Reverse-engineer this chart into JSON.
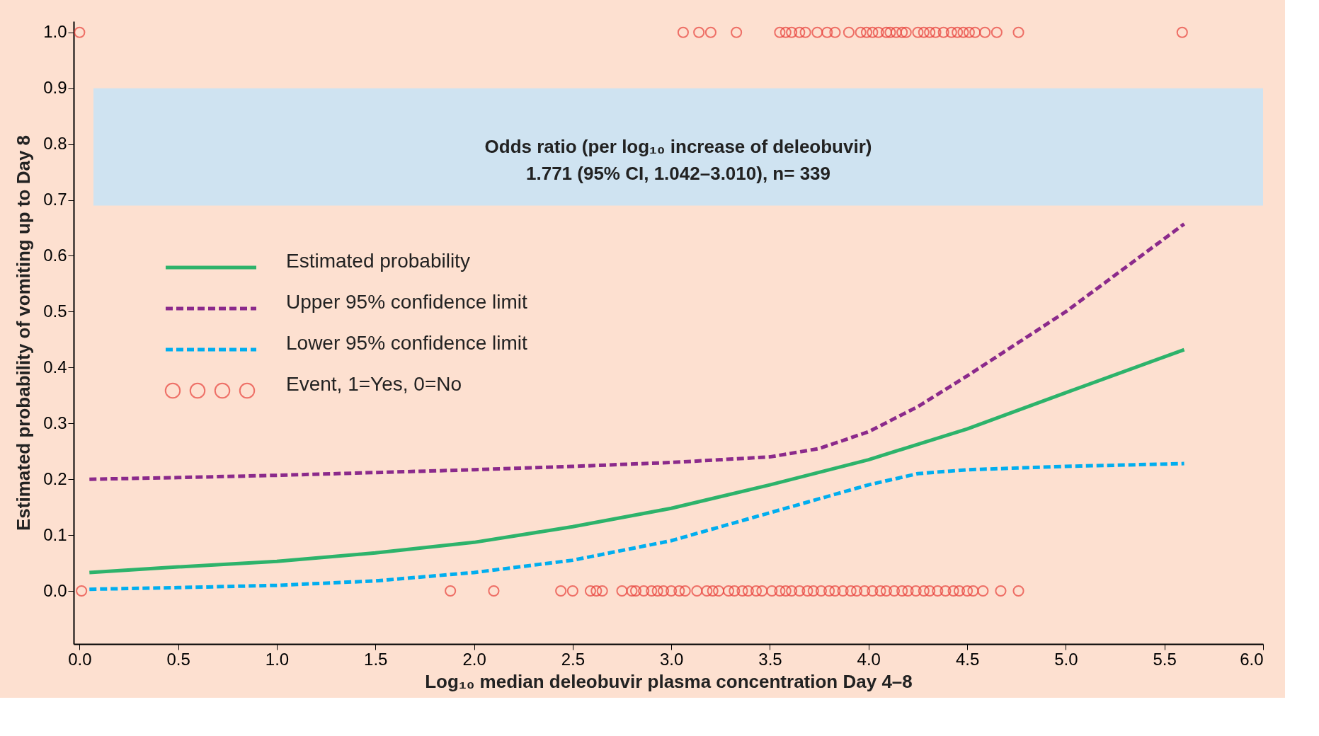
{
  "chart_data": {
    "type": "line",
    "xlabel": "Log₁₀ median deleobuvir plasma concentration Day 4–8",
    "ylabel": "Estimated probability of vomiting up to Day 8",
    "xlim": [
      -0.03,
      6.0
    ],
    "xticks": [
      {
        "value": 0,
        "label": "0.0"
      },
      0.5,
      {
        "value": 1,
        "label": "1.0"
      },
      1.5,
      {
        "value": 2,
        "label": "2.0"
      },
      2.5,
      {
        "value": 3,
        "label": "3.0"
      },
      3.5,
      {
        "value": 4,
        "label": "4.0"
      },
      4.5,
      {
        "value": 5,
        "label": "5.0"
      },
      5.5,
      {
        "value": 6,
        "label": "6.0"
      }
    ],
    "ylim": [
      -0.095,
      1.02
    ],
    "yticks": [
      {
        "value": 0,
        "label": "0.0"
      },
      0.1,
      0.2,
      0.3,
      0.4,
      0.5,
      0.6,
      0.7,
      0.8,
      0.9,
      {
        "value": 1,
        "label": "1.0"
      }
    ],
    "grid": false,
    "legend": "top left",
    "bands": [
      {
        "axis": "y",
        "from": 0.69,
        "to": 0.9,
        "color": "#cfe3f1",
        "label": "Odds ratio (per log₁₀ increase of deleobuvir)\n1.771 (95% CI, 1.042–3.010), n= 339"
      }
    ],
    "series": [
      {
        "name": "Estimated probability",
        "line_style": "solid",
        "color": "#2db36b",
        "x": [
          0.05,
          0.5,
          1.0,
          1.5,
          2.0,
          2.5,
          3.0,
          3.5,
          4.0,
          4.5,
          5.0,
          5.6
        ],
        "values": [
          0.033,
          0.043,
          0.053,
          0.068,
          0.087,
          0.115,
          0.148,
          0.19,
          0.235,
          0.29,
          0.355,
          0.432
        ]
      },
      {
        "name": "Upper 95% confidence limit",
        "line_style": "dashed",
        "color": "#8b2a8b",
        "x": [
          0.05,
          0.5,
          1.0,
          1.5,
          2.0,
          2.5,
          3.0,
          3.5,
          3.75,
          4.0,
          4.25,
          4.5,
          5.0,
          5.6
        ],
        "values": [
          0.2,
          0.203,
          0.207,
          0.212,
          0.217,
          0.223,
          0.23,
          0.24,
          0.255,
          0.285,
          0.33,
          0.385,
          0.5,
          0.657
        ]
      },
      {
        "name": "Lower 95% confidence limit",
        "line_style": "dashed",
        "color": "#00aeef",
        "x": [
          0.05,
          0.5,
          1.0,
          1.5,
          2.0,
          2.5,
          3.0,
          3.5,
          4.0,
          4.25,
          4.5,
          5.0,
          5.6
        ],
        "values": [
          0.003,
          0.006,
          0.01,
          0.018,
          0.033,
          0.055,
          0.09,
          0.14,
          0.19,
          0.21,
          0.217,
          0.223,
          0.228
        ]
      },
      {
        "name": "Event, 1=Yes, 0=No",
        "type": "scatter",
        "marker": "circle",
        "color": "#e8403a",
        "x": [
          0.0,
          3.06,
          3.14,
          3.2,
          3.33,
          3.55,
          3.58,
          3.61,
          3.65,
          3.68,
          3.74,
          3.79,
          3.83,
          3.9,
          3.96,
          3.99,
          4.02,
          4.05,
          4.09,
          4.11,
          4.14,
          4.17,
          4.19,
          4.25,
          4.28,
          4.31,
          4.34,
          4.38,
          4.42,
          4.45,
          4.48,
          4.51,
          4.54,
          4.59,
          4.65,
          4.76,
          5.59,
          0.01,
          1.88,
          2.1,
          2.44,
          2.5,
          2.59,
          2.62,
          2.65,
          2.75,
          2.8,
          2.82,
          2.86,
          2.9,
          2.93,
          2.96,
          3.0,
          3.04,
          3.07,
          3.13,
          3.18,
          3.21,
          3.24,
          3.29,
          3.32,
          3.36,
          3.39,
          3.43,
          3.46,
          3.51,
          3.55,
          3.58,
          3.61,
          3.65,
          3.69,
          3.72,
          3.76,
          3.8,
          3.83,
          3.87,
          3.91,
          3.94,
          3.98,
          4.02,
          4.06,
          4.09,
          4.13,
          4.17,
          4.2,
          4.24,
          4.28,
          4.31,
          4.35,
          4.39,
          4.43,
          4.46,
          4.5,
          4.53,
          4.58,
          4.67,
          4.76
        ],
        "values": [
          1,
          1,
          1,
          1,
          1,
          1,
          1,
          1,
          1,
          1,
          1,
          1,
          1,
          1,
          1,
          1,
          1,
          1,
          1,
          1,
          1,
          1,
          1,
          1,
          1,
          1,
          1,
          1,
          1,
          1,
          1,
          1,
          1,
          1,
          1,
          1,
          1,
          0,
          0,
          0,
          0,
          0,
          0,
          0,
          0,
          0,
          0,
          0,
          0,
          0,
          0,
          0,
          0,
          0,
          0,
          0,
          0,
          0,
          0,
          0,
          0,
          0,
          0,
          0,
          0,
          0,
          0,
          0,
          0,
          0,
          0,
          0,
          0,
          0,
          0,
          0,
          0,
          0,
          0,
          0,
          0,
          0,
          0,
          0,
          0,
          0,
          0,
          0,
          0,
          0,
          0,
          0,
          0,
          0,
          0,
          0,
          0
        ]
      }
    ]
  }
}
